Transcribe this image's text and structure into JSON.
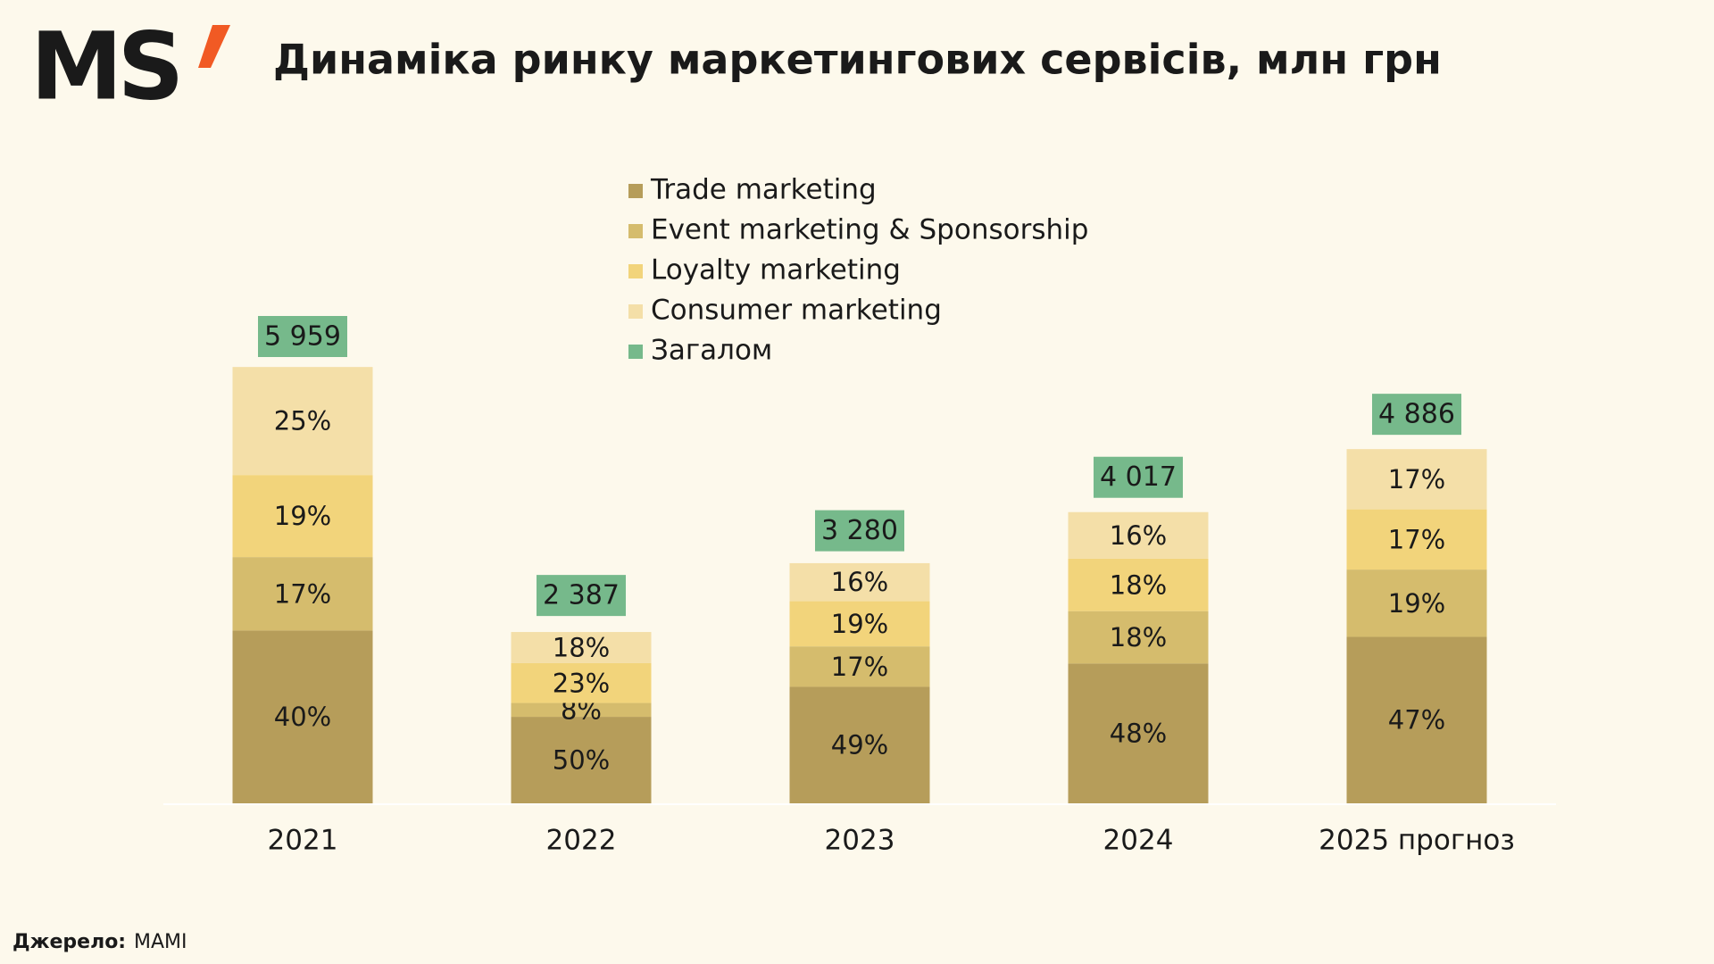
{
  "logo": "MS",
  "source": {
    "label": "Джерело:",
    "value": "MAMI"
  },
  "chart_data": {
    "type": "stacked_bar",
    "title": "Динаміка ринку маркетингових сервісів, млн грн",
    "categories": [
      "2021",
      "2022",
      "2023",
      "2024",
      "2025 прогноз"
    ],
    "series": [
      {
        "name": "Trade marketing",
        "color": "#b69d5a",
        "values": [
          40,
          50,
          49,
          48,
          47
        ],
        "value_labels": [
          "40%",
          "50%",
          "49%",
          "48%",
          "47%"
        ]
      },
      {
        "name": "Event marketing & Sponsorship",
        "color": "#d5bc6d",
        "values": [
          17,
          8,
          17,
          18,
          19
        ],
        "value_labels": [
          "17%",
          "8%",
          "17%",
          "18%",
          "19%"
        ]
      },
      {
        "name": "Loyalty marketing",
        "color": "#f2d47b",
        "values": [
          19,
          23,
          19,
          18,
          17
        ],
        "value_labels": [
          "19%",
          "23%",
          "19%",
          "18%",
          "17%"
        ]
      },
      {
        "name": "Consumer marketing",
        "color": "#f4dfa8",
        "values": [
          25,
          18,
          16,
          16,
          17
        ],
        "value_labels": [
          "25%",
          "18%",
          "16%",
          "16%",
          "17%"
        ]
      }
    ],
    "total": {
      "name": "Загалом",
      "color": "#76b98b",
      "values": [
        5959,
        2387,
        3280,
        4017,
        4886
      ],
      "value_labels": [
        "5 959",
        "2 387",
        "3 280",
        "4 017",
        "4 886"
      ]
    }
  }
}
